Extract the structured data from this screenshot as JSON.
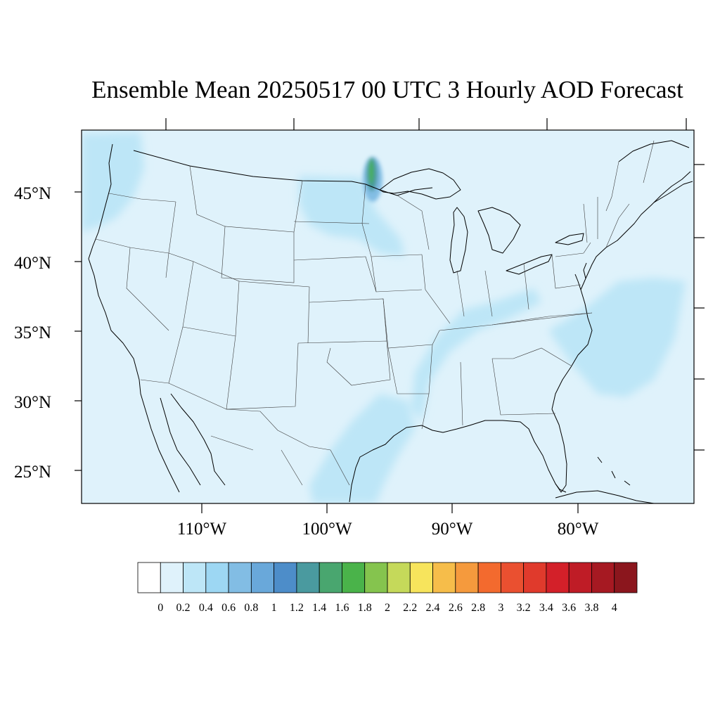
{
  "title": "Ensemble Mean 20250517 00 UTC 3 Hourly AOD Forecast",
  "map": {
    "variable": "AOD",
    "background_color": "#dff2fb",
    "lat_labels": [
      "45°N",
      "40°N",
      "35°N",
      "30°N",
      "25°N"
    ],
    "lon_labels": [
      "110°W",
      "100°W",
      "90°W",
      "80°W"
    ],
    "plumes": [
      {
        "name": "Pacific northwest coast",
        "aod": 0.4,
        "color": "#bde6f7"
      },
      {
        "name": "North Dakota / Minnesota",
        "aod": 0.4,
        "color": "#bde6f7"
      },
      {
        "name": "Red River valley peak",
        "aod": 1.8,
        "color": "#4ab34a"
      },
      {
        "name": "Lower Mississippi valley",
        "aod": 0.4,
        "color": "#bde6f7"
      },
      {
        "name": "South Texas",
        "aod": 0.4,
        "color": "#bde6f7"
      },
      {
        "name": "Atlantic offshore",
        "aod": 0.4,
        "color": "#bde6f7"
      }
    ]
  },
  "colorbar": {
    "labels": [
      "0",
      "0.2",
      "0.4",
      "0.6",
      "0.8",
      "1",
      "1.2",
      "1.4",
      "1.6",
      "1.8",
      "2",
      "2.2",
      "2.4",
      "2.6",
      "2.8",
      "3",
      "3.2",
      "3.4",
      "3.6",
      "3.8",
      "4"
    ],
    "colors": [
      "#ffffff",
      "#dff2fb",
      "#bde6f7",
      "#9dd7f3",
      "#82bde4",
      "#69a8da",
      "#4d8dc9",
      "#4a9a9f",
      "#49a66f",
      "#4ab34a",
      "#85c44e",
      "#c5d95a",
      "#f7e45c",
      "#f6bd4a",
      "#f59a3d",
      "#f36a2e",
      "#ea5030",
      "#e03a2c",
      "#d32029",
      "#bf1c26",
      "#a61922",
      "#8b161d"
    ]
  }
}
